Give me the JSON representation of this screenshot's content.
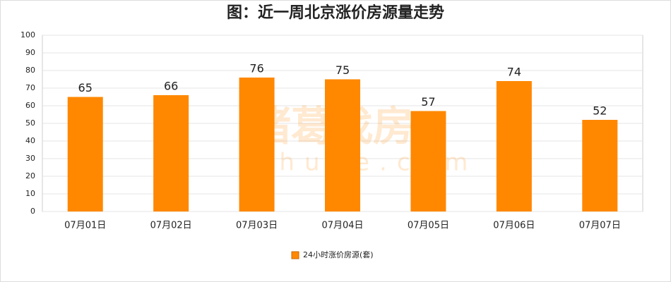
{
  "chart_data": {
    "type": "bar",
    "title": "图：近一周北京涨价房源量走势",
    "categories": [
      "07月01日",
      "07月02日",
      "07月03日",
      "07月04日",
      "07月05日",
      "07月06日",
      "07月07日"
    ],
    "series": [
      {
        "name": "24小时涨价房源(套)",
        "color": "#ff8800",
        "values": [
          65,
          66,
          76,
          75,
          57,
          74,
          52
        ]
      }
    ],
    "ylim": [
      0,
      100
    ],
    "yticks": [
      0,
      10,
      20,
      30,
      40,
      50,
      60,
      70,
      80,
      90,
      100
    ],
    "grid": true,
    "legend": "bottom",
    "watermark": [
      "诸葛找房",
      "zhuge.com"
    ]
  }
}
